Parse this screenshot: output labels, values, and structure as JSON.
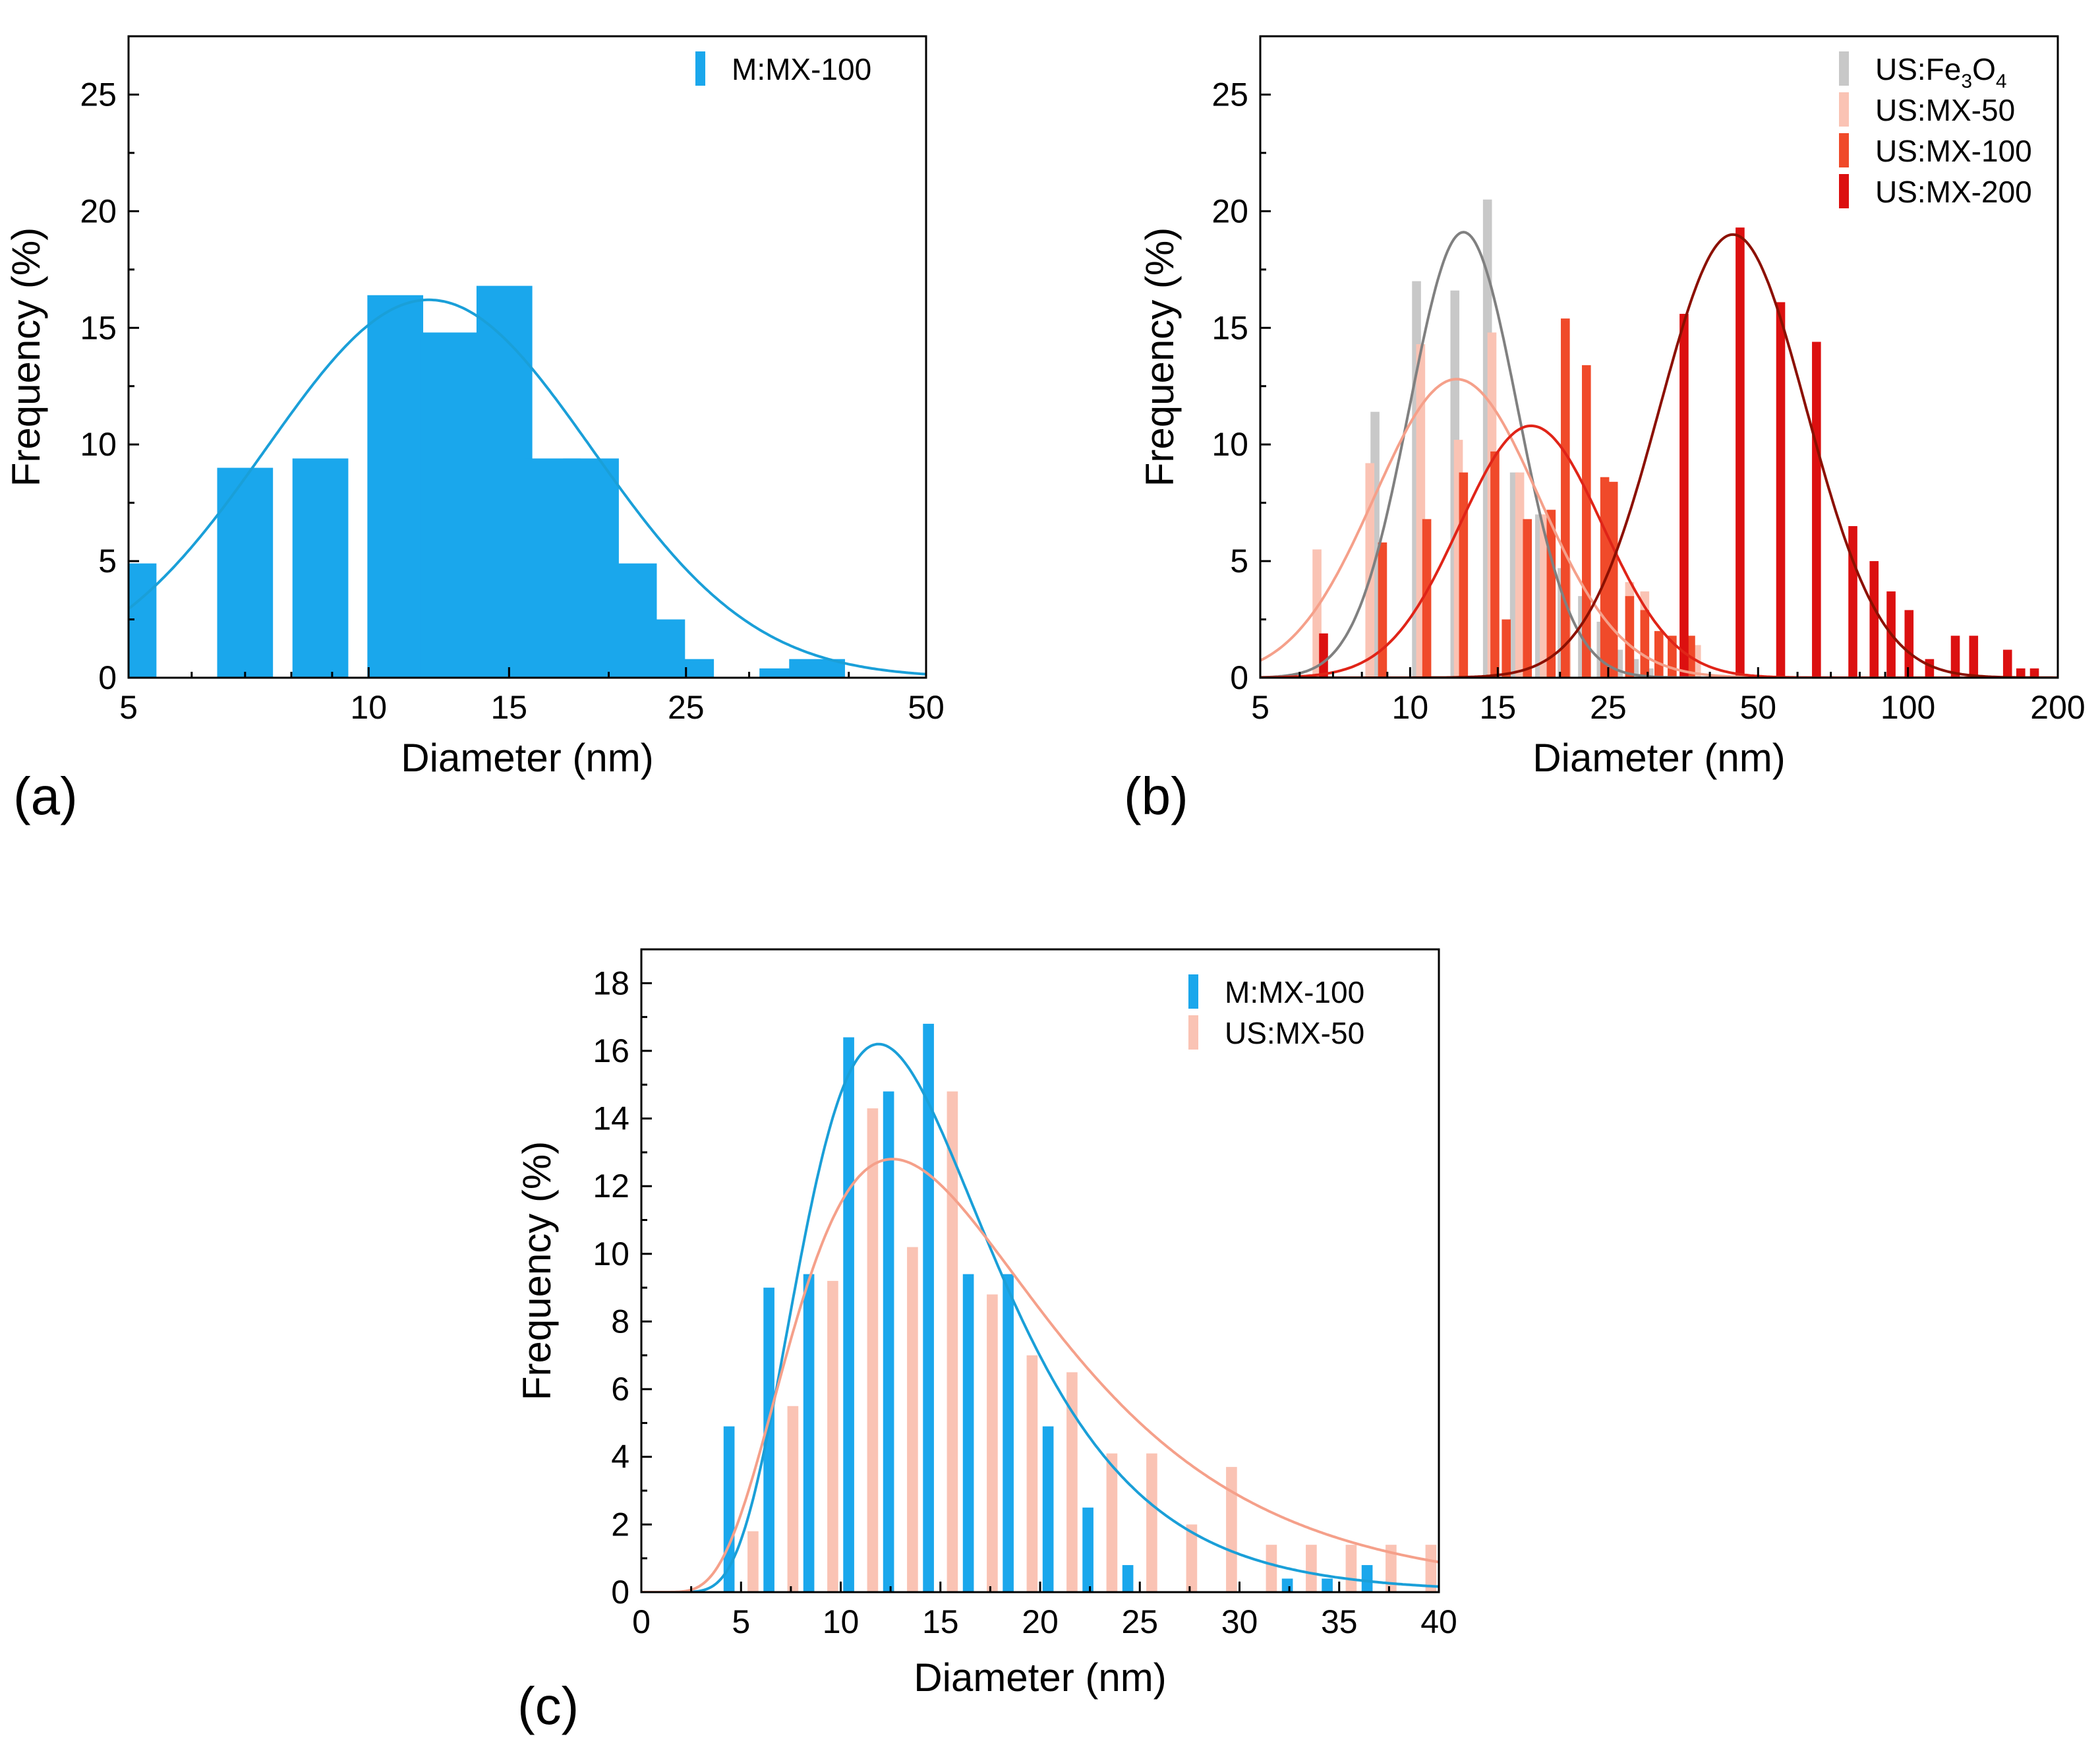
{
  "colors": {
    "blue": "#1aa7ec",
    "blue_curve": "#1a9fd8",
    "gray": "#c8c8c8",
    "gray_curve": "#808080",
    "pink": "#fac3b4",
    "pink_curve": "#f5a08a",
    "red": "#f04a2a",
    "red_curve": "#e02418",
    "darkred": "#dc1010",
    "darkred_curve": "#8c1000"
  },
  "chart_data": [
    {
      "panel": "(a)",
      "type": "bar",
      "xscale": "log",
      "xlim": [
        5,
        50
      ],
      "ylim": [
        0,
        27.5
      ],
      "xlabel": "Diameter (nm)",
      "ylabel": "Frequency (%)",
      "xticks": [
        5,
        10,
        15,
        25,
        50
      ],
      "yticks": [
        0,
        5,
        10,
        15,
        20,
        25
      ],
      "legend_position": "top-right",
      "series": [
        {
          "name": "M:MX-100",
          "color_key": "blue",
          "fit_color_key": "blue_curve",
          "bars": [
            [
              5.0,
              4.9
            ],
            [
              7.0,
              9.0
            ],
            [
              8.7,
              9.4
            ],
            [
              10.8,
              16.4
            ],
            [
              12.6,
              14.8
            ],
            [
              14.8,
              16.8
            ],
            [
              17.0,
              9.4
            ],
            [
              19.0,
              9.4
            ],
            [
              21.2,
              4.9
            ],
            [
              23.0,
              2.5
            ],
            [
              25.0,
              0.8
            ],
            [
              33.5,
              0.4
            ],
            [
              36.5,
              0.8
            ]
          ],
          "bar_width": 0.035,
          "fit": {
            "model": "lognormal",
            "center": 11.9,
            "sigma": 0.47,
            "amplitude": 16.2
          }
        }
      ]
    },
    {
      "panel": "(b)",
      "type": "bar",
      "xscale": "log",
      "xlim": [
        5,
        200
      ],
      "ylim": [
        0,
        27.5
      ],
      "xlabel": "Diameter (nm)",
      "ylabel": "Frequency (%)",
      "xticks": [
        5,
        10,
        15,
        25,
        50,
        100,
        200
      ],
      "yticks": [
        0,
        5,
        10,
        15,
        20,
        25
      ],
      "legend_position": "top-right",
      "series": [
        {
          "name": "US:Fe3O4",
          "name_main": "US:Fe",
          "name_sub1": "3",
          "name_mid": "O",
          "name_sub2": "4",
          "color_key": "gray",
          "fit_color_key": "gray_curve",
          "bars": [
            [
              8.5,
              11.4
            ],
            [
              10.3,
              17.0
            ],
            [
              12.3,
              16.6
            ],
            [
              14.3,
              20.5
            ],
            [
              16.2,
              8.8
            ],
            [
              18.2,
              7.0
            ],
            [
              20.2,
              4.7
            ],
            [
              22.2,
              3.5
            ],
            [
              24.2,
              2.4
            ],
            [
              26.2,
              1.2
            ],
            [
              28.2,
              0.8
            ],
            [
              30.2,
              0.4
            ]
          ],
          "bar_width": 0.009,
          "fit": {
            "model": "lognormal",
            "center": 12.8,
            "sigma": 0.25,
            "amplitude": 19.1
          }
        },
        {
          "name": "US:MX-50",
          "color_key": "pink",
          "fit_color_key": "pink_curve",
          "bars": [
            [
              6.5,
              5.5
            ],
            [
              8.3,
              9.2
            ],
            [
              10.5,
              14.3
            ],
            [
              12.5,
              10.2
            ],
            [
              14.6,
              14.8
            ],
            [
              16.6,
              8.8
            ],
            [
              18.6,
              7.0
            ],
            [
              20.6,
              4.8
            ],
            [
              22.6,
              3.5
            ],
            [
              24.6,
              2.9
            ],
            [
              27.6,
              4.1
            ],
            [
              29.6,
              3.7
            ],
            [
              31.6,
              2.0
            ],
            [
              33.6,
              1.4
            ],
            [
              35.6,
              1.4
            ],
            [
              37.6,
              1.4
            ]
          ],
          "bar_width": 0.009,
          "fit": {
            "model": "lognormal",
            "center": 12.4,
            "sigma": 0.38,
            "amplitude": 12.8
          }
        },
        {
          "name": "US:MX-100",
          "color_key": "red",
          "fit_color_key": "red_curve",
          "bars": [
            [
              8.8,
              5.8
            ],
            [
              10.8,
              6.8
            ],
            [
              12.8,
              8.8
            ],
            [
              14.8,
              9.7
            ],
            [
              15.6,
              2.5
            ],
            [
              17.2,
              6.8
            ],
            [
              19.2,
              7.2
            ],
            [
              20.5,
              15.4
            ],
            [
              22.6,
              13.4
            ],
            [
              24.6,
              8.6
            ],
            [
              25.6,
              8.4
            ],
            [
              27.6,
              3.5
            ],
            [
              29.6,
              2.9
            ],
            [
              31.6,
              2.0
            ],
            [
              33.6,
              1.8
            ],
            [
              36.6,
              1.8
            ]
          ],
          "bar_width": 0.009,
          "fit": {
            "model": "lognormal",
            "center": 17.5,
            "sigma": 0.33,
            "amplitude": 10.8
          }
        },
        {
          "name": "US:MX-200",
          "color_key": "darkred",
          "fit_color_key": "darkred_curve",
          "bars": [
            [
              6.7,
              1.9
            ],
            [
              35.5,
              15.6
            ],
            [
              46.0,
              19.3
            ],
            [
              55.5,
              16.1
            ],
            [
              65.5,
              14.4
            ],
            [
              77.5,
              6.5
            ],
            [
              85.5,
              5.0
            ],
            [
              92.5,
              3.7
            ],
            [
              100.5,
              2.9
            ],
            [
              110.5,
              0.8
            ],
            [
              124.5,
              1.8
            ],
            [
              135.5,
              1.8
            ],
            [
              158.5,
              1.2
            ],
            [
              168.5,
              0.4
            ],
            [
              179.5,
              0.4
            ]
          ],
          "bar_width": 0.009,
          "fit": {
            "model": "lognormal",
            "center": 44.5,
            "sigma": 0.34,
            "amplitude": 19.0
          }
        }
      ]
    },
    {
      "panel": "(c)",
      "type": "bar",
      "xscale": "linear",
      "xlim": [
        0,
        40
      ],
      "ylim": [
        0,
        19
      ],
      "xlabel": "Diameter (nm)",
      "ylabel": "Frequency (%)",
      "xticks": [
        0,
        5,
        10,
        15,
        20,
        25,
        30,
        35,
        40
      ],
      "yticks": [
        0,
        2,
        4,
        6,
        8,
        10,
        12,
        14,
        16,
        18
      ],
      "legend_position": "top-right",
      "series": [
        {
          "name": "M:MX-100",
          "color_key": "blue",
          "fit_color_key": "blue_curve",
          "bars": [
            [
              4.4,
              4.9
            ],
            [
              6.4,
              9.0
            ],
            [
              8.4,
              9.4
            ],
            [
              10.4,
              16.4
            ],
            [
              12.4,
              14.8
            ],
            [
              14.4,
              16.8
            ],
            [
              16.4,
              9.4
            ],
            [
              18.4,
              9.4
            ],
            [
              20.4,
              4.9
            ],
            [
              22.4,
              2.5
            ],
            [
              24.4,
              0.8
            ],
            [
              32.4,
              0.4
            ],
            [
              34.4,
              0.4
            ],
            [
              36.4,
              0.8
            ]
          ],
          "bar_width": 0.55,
          "fit": {
            "model": "lognormal",
            "center": 11.9,
            "sigma": 0.4,
            "amplitude": 16.2
          }
        },
        {
          "name": "US:MX-50",
          "color_key": "pink",
          "fit_color_key": "pink_curve",
          "bars": [
            [
              5.6,
              1.8
            ],
            [
              7.6,
              5.5
            ],
            [
              9.6,
              9.2
            ],
            [
              11.6,
              14.3
            ],
            [
              13.6,
              10.2
            ],
            [
              15.6,
              14.8
            ],
            [
              17.6,
              8.8
            ],
            [
              19.6,
              7.0
            ],
            [
              21.6,
              6.5
            ],
            [
              23.6,
              4.1
            ],
            [
              25.6,
              4.1
            ],
            [
              27.6,
              2.0
            ],
            [
              29.6,
              3.7
            ],
            [
              31.6,
              1.4
            ],
            [
              33.6,
              1.4
            ],
            [
              35.6,
              1.4
            ],
            [
              37.6,
              1.4
            ],
            [
              39.6,
              1.4
            ]
          ],
          "bar_width": 0.55,
          "fit": {
            "model": "lognormal",
            "center": 12.6,
            "sigma": 0.5,
            "amplitude": 12.8
          }
        }
      ]
    }
  ]
}
